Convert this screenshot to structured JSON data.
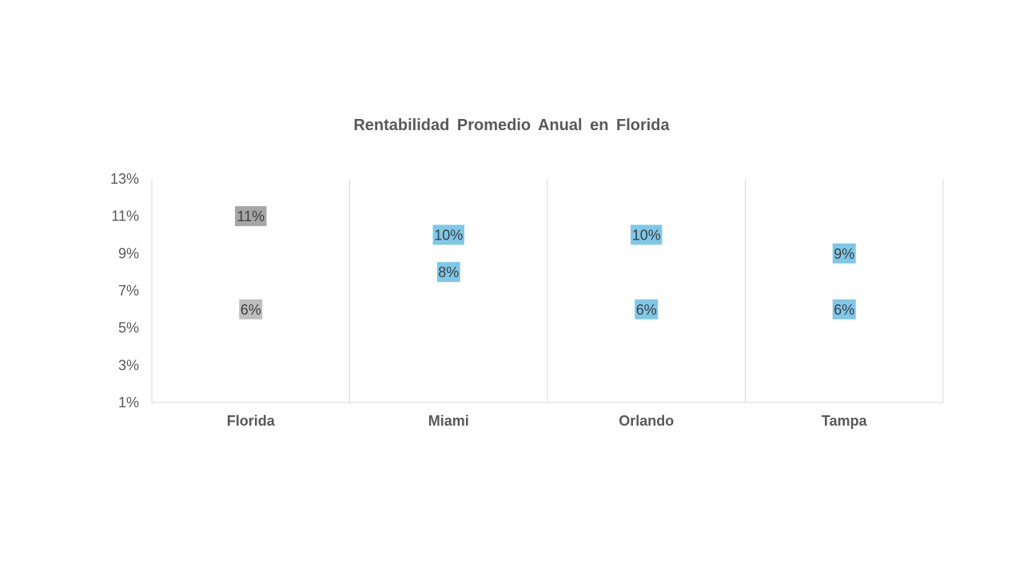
{
  "chart_data": {
    "type": "scatter",
    "title": "Rentabilidad Promedio Anual en Florida",
    "xlabel": "",
    "ylabel": "",
    "categories": [
      "Florida",
      "Miami",
      "Orlando",
      "Tampa"
    ],
    "series": [
      {
        "values": [
          11,
          10,
          10,
          9
        ],
        "labels": [
          "11%",
          "10%",
          "10%",
          "9%"
        ]
      },
      {
        "values": [
          6,
          8,
          6,
          6
        ],
        "labels": [
          "6%",
          "8%",
          "6%",
          "6%"
        ]
      }
    ],
    "ylim": [
      1,
      13
    ],
    "yticks": [
      "1%",
      "3%",
      "5%",
      "7%",
      "9%",
      "11%",
      "13%"
    ],
    "ytick_values": [
      1,
      3,
      5,
      7,
      9,
      11,
      13
    ],
    "grid": "vertical category separators",
    "legend": "none",
    "colors": {
      "florida_high": "#a6a6a6",
      "florida_low": "#bfbfbf",
      "cities": "#7ec8e8",
      "text": "#595959",
      "grid": "#d9d9d9"
    }
  }
}
